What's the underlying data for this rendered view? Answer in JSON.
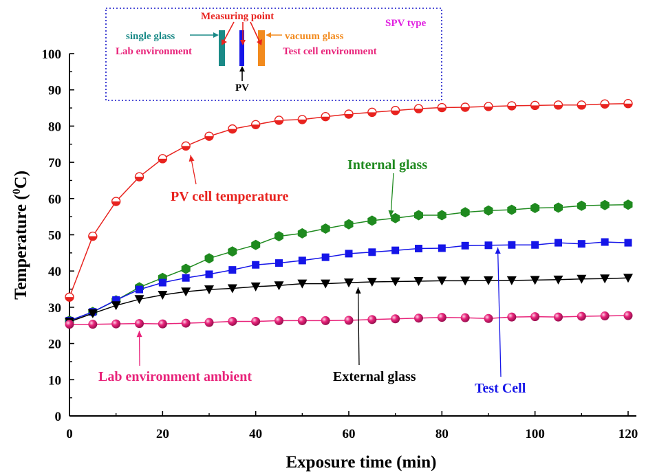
{
  "chart_data": {
    "type": "line",
    "xlabel": "Exposure time (min)",
    "ylabel_main": "Temperature (",
    "ylabel_sup": "0",
    "ylabel_end": "C)",
    "xlim": [
      0,
      120
    ],
    "ylim": [
      0,
      100
    ],
    "xticks": [
      0,
      20,
      40,
      60,
      80,
      100,
      120
    ],
    "yticks": [
      0,
      10,
      20,
      30,
      40,
      50,
      60,
      70,
      80,
      90,
      100
    ],
    "grid": false,
    "x": [
      0,
      5,
      10,
      15,
      20,
      25,
      30,
      35,
      40,
      45,
      50,
      55,
      60,
      65,
      70,
      75,
      80,
      85,
      90,
      95,
      100,
      105,
      110,
      115,
      120
    ],
    "series": [
      {
        "key": "pv",
        "marker": "half-circle",
        "color": "#e8231f",
        "values": [
          32.8,
          49.6,
          59.2,
          66.0,
          71.0,
          74.5,
          77.2,
          79.2,
          80.4,
          81.6,
          81.8,
          82.6,
          83.3,
          83.8,
          84.3,
          84.8,
          85.1,
          85.2,
          85.4,
          85.6,
          85.7,
          85.8,
          85.8,
          86.1,
          86.2
        ]
      },
      {
        "key": "internal",
        "marker": "hexagon",
        "color": "#1f8a1f",
        "values": [
          26.3,
          28.7,
          31.9,
          35.5,
          38.1,
          40.6,
          43.5,
          45.4,
          47.2,
          49.6,
          50.4,
          51.7,
          52.9,
          53.9,
          54.6,
          55.4,
          55.4,
          56.2,
          56.7,
          56.9,
          57.4,
          57.5,
          58.0,
          58.2,
          58.3
        ]
      },
      {
        "key": "testcell",
        "marker": "square",
        "color": "#1515e8",
        "values": [
          26.3,
          28.7,
          32.0,
          34.9,
          36.8,
          38.1,
          39.1,
          40.3,
          41.7,
          42.2,
          42.9,
          43.8,
          44.8,
          45.2,
          45.7,
          46.2,
          46.3,
          47.0,
          47.1,
          47.2,
          47.2,
          47.8,
          47.5,
          48.0,
          47.8
        ]
      },
      {
        "key": "external",
        "marker": "down-triangle",
        "color": "#000000",
        "values": [
          26.0,
          28.3,
          30.5,
          32.2,
          33.4,
          34.3,
          34.9,
          35.2,
          35.7,
          36.0,
          36.5,
          36.5,
          36.8,
          37.0,
          37.1,
          37.2,
          37.3,
          37.3,
          37.4,
          37.4,
          37.5,
          37.6,
          37.8,
          37.9,
          38.1
        ]
      },
      {
        "key": "lab",
        "marker": "sphere",
        "color": "#e8237a",
        "values": [
          25.3,
          25.3,
          25.4,
          25.5,
          25.4,
          25.6,
          25.8,
          26.1,
          26.1,
          26.3,
          26.3,
          26.3,
          26.4,
          26.6,
          26.8,
          27.0,
          27.2,
          27.1,
          26.9,
          27.3,
          27.4,
          27.3,
          27.5,
          27.6,
          27.7
        ]
      }
    ],
    "annotations": [
      {
        "text": "PV cell temperature",
        "color": "#e8231f",
        "arrow_to": [
          26,
          72
        ]
      },
      {
        "text": "Internal glass",
        "color": "#1f8a1f",
        "arrow_to": [
          69,
          55
        ]
      },
      {
        "text": "Test Cell",
        "color": "#1515e8",
        "arrow_to": [
          92,
          46.5
        ]
      },
      {
        "text": "External glass",
        "color": "#000000",
        "arrow_to": [
          62,
          35.5
        ]
      },
      {
        "text": "Lab environment ambient",
        "color": "#e8237a",
        "arrow_to": [
          15,
          23.5
        ]
      }
    ],
    "inset": {
      "measuring_point": "Measuring point",
      "single_glass": "single glass",
      "vacuum_glass": "vacuum glass",
      "spv_type": "SPV type",
      "lab_env": "Lab environment",
      "test_cell_env": "Test cell environment",
      "pv": "PV",
      "colors": {
        "measuring": "#e8231f",
        "single": "#1a8a87",
        "vacuum": "#f28a1d",
        "spv": "#e020e0",
        "env": "#e8237a",
        "pv_bar": "#1515e8",
        "border": "#1515c8"
      }
    }
  }
}
